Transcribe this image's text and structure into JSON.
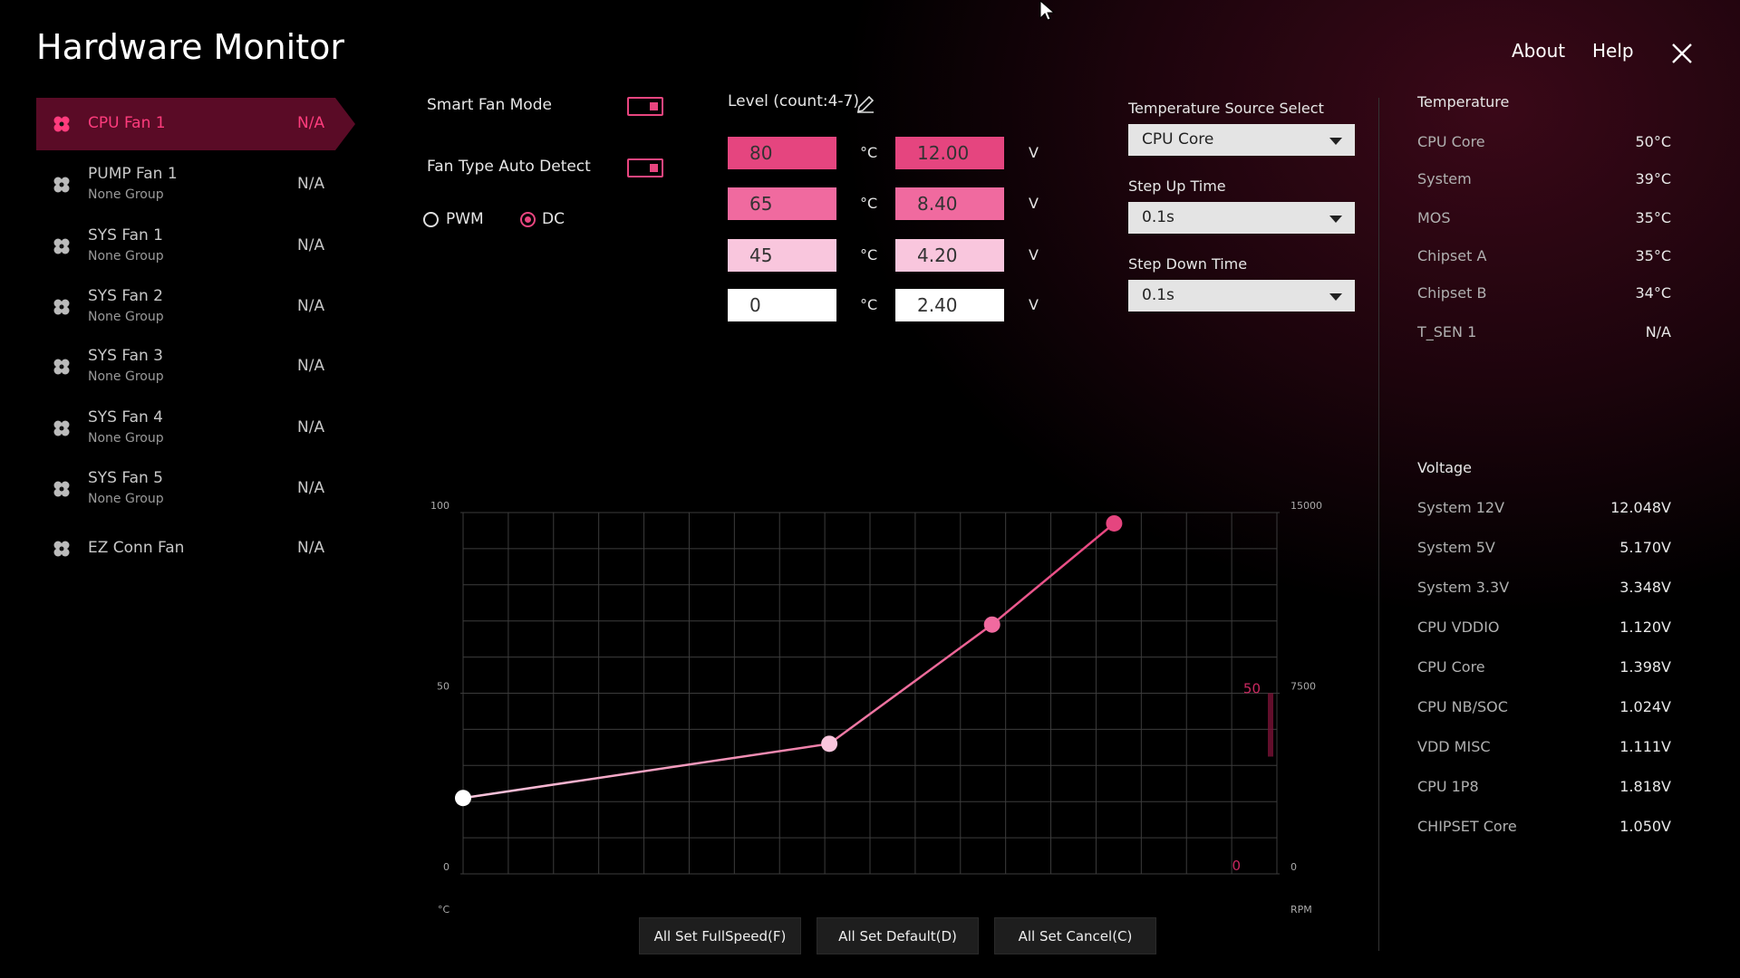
{
  "header": {
    "title": "Hardware Monitor",
    "about": "About",
    "help": "Help"
  },
  "fans": [
    {
      "name": "CPU Fan 1",
      "value": "N/A",
      "active": true
    },
    {
      "name": "PUMP Fan 1",
      "group": "None Group",
      "value": "N/A"
    },
    {
      "name": "SYS Fan 1",
      "group": "None Group",
      "value": "N/A"
    },
    {
      "name": "SYS Fan 2",
      "group": "None Group",
      "value": "N/A"
    },
    {
      "name": "SYS Fan 3",
      "group": "None Group",
      "value": "N/A"
    },
    {
      "name": "SYS Fan 4",
      "group": "None Group",
      "value": "N/A"
    },
    {
      "name": "SYS Fan 5",
      "group": "None Group",
      "value": "N/A"
    },
    {
      "name": "EZ Conn Fan",
      "value": "N/A"
    }
  ],
  "settings": {
    "smart_fan_mode": "Smart Fan Mode",
    "fan_type_auto_detect": "Fan Type Auto Detect",
    "pwm": "PWM",
    "dc": "DC",
    "selected": "dc",
    "level": "Level (count:4-7)"
  },
  "levels": {
    "temp_unit": "°C",
    "volt_unit": "V",
    "rows": [
      {
        "temp": "80",
        "volt": "12.00",
        "color": "#e5457f"
      },
      {
        "temp": "65",
        "volt": "8.40",
        "color": "#f06a9f"
      },
      {
        "temp": "45",
        "volt": "4.20",
        "color": "#f9c6dd"
      },
      {
        "temp": "0",
        "volt": "2.40",
        "color": "#ffffff"
      }
    ]
  },
  "selects": [
    {
      "label": "Temperature Source Select",
      "value": "CPU Core"
    },
    {
      "label": "Step Up Time",
      "value": "0.1s"
    },
    {
      "label": "Step Down Time",
      "value": "0.1s"
    }
  ],
  "sensors": {
    "temperature": {
      "title": "Temperature",
      "rows": [
        [
          "CPU Core",
          "50°C"
        ],
        [
          "System",
          "39°C"
        ],
        [
          "MOS",
          "35°C"
        ],
        [
          "Chipset A",
          "35°C"
        ],
        [
          "Chipset B",
          "34°C"
        ],
        [
          "T_SEN 1",
          "N/A"
        ]
      ]
    },
    "voltage": {
      "title": "Voltage",
      "rows": [
        [
          "System 12V",
          "12.048V"
        ],
        [
          "System 5V",
          "5.170V"
        ],
        [
          "System 3.3V",
          "3.348V"
        ],
        [
          "CPU VDDIO",
          "1.120V"
        ],
        [
          "CPU Core",
          "1.398V"
        ],
        [
          "CPU NB/SOC",
          "1.024V"
        ],
        [
          "VDD MISC",
          "1.111V"
        ],
        [
          "CPU 1P8",
          "1.818V"
        ],
        [
          "CHIPSET Core",
          "1.050V"
        ]
      ]
    }
  },
  "buttons": [
    "All Set FullSpeed(F)",
    "All Set Default(D)",
    "All Set Cancel(C)"
  ],
  "chart_data": {
    "type": "line",
    "x": [
      0,
      45,
      65,
      80
    ],
    "series": [
      {
        "values": [
          21,
          36,
          69,
          97
        ],
        "color": "#e8457f",
        "point_colors": [
          "#ffffff",
          "#f9c6dd",
          "#f06a9f",
          "#e5457f"
        ]
      }
    ],
    "xlim": [
      0,
      100
    ],
    "ylim": [
      0,
      100
    ],
    "yticks": [
      0,
      50,
      100
    ],
    "y2lim": [
      0,
      15000
    ],
    "y2ticks": [
      0,
      7500,
      15000
    ],
    "y_label": "°C",
    "y2_label": "RPM",
    "grid": true,
    "annotations": [
      "50",
      "0"
    ]
  }
}
